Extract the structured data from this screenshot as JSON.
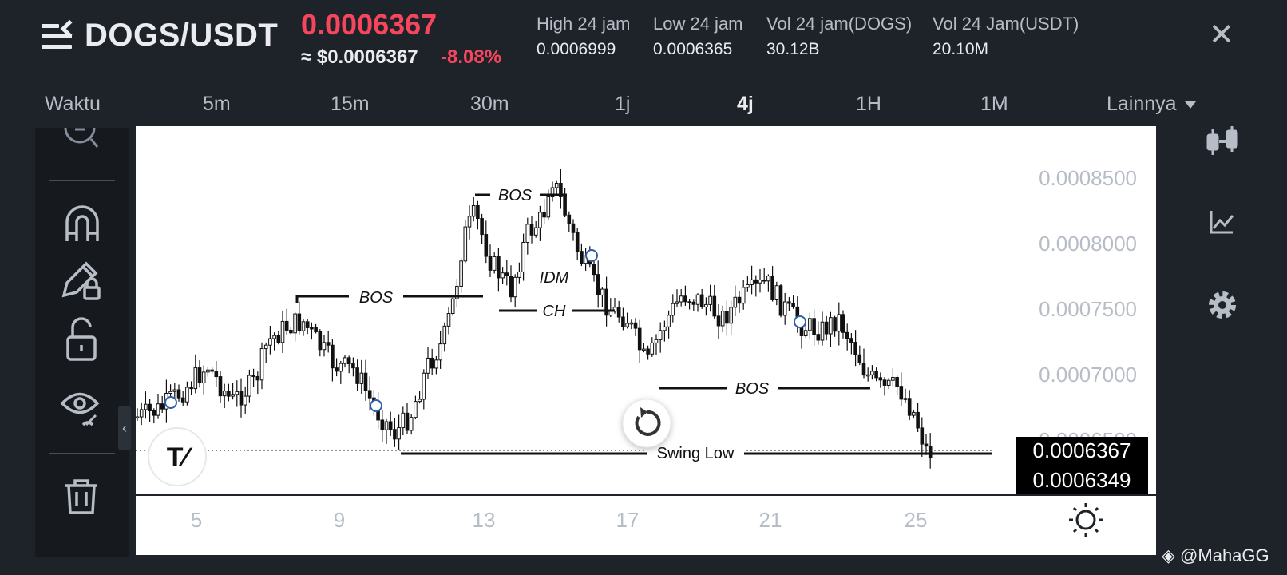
{
  "header": {
    "pair": "DOGS/USDT",
    "price": "0.0006367",
    "usd_price": "≈ $0.0006367",
    "change": "-8.08%",
    "stats": [
      {
        "label": "High 24 jam",
        "value": "0.0006999"
      },
      {
        "label": "Low 24 jam",
        "value": "0.0006365"
      },
      {
        "label": "Vol 24 jam(DOGS)",
        "value": "30.12B"
      },
      {
        "label": "Vol 24 Jam(USDT)",
        "value": "20.10M"
      }
    ],
    "close_glyph": "✕"
  },
  "intervals": {
    "items": [
      "Waktu",
      "5m",
      "15m",
      "30m",
      "1j",
      "4j",
      "1H",
      "1M",
      "Lainnya"
    ],
    "active": "4j"
  },
  "chart": {
    "y_ticks": [
      "0.0008500",
      "0.0008000",
      "0.0007500",
      "0.0007000",
      "0.0006500"
    ],
    "x_ticks": [
      "5",
      "9",
      "13",
      "17",
      "21",
      "25"
    ],
    "price_tag": "0.0006367",
    "price_tag2": "0.0006349",
    "labels": {
      "bos": "BOS",
      "idm": "IDM",
      "ch": "CH",
      "swing_low": "Swing Low"
    },
    "logo_text": "T∕"
  },
  "chart_data": {
    "type": "candlestick",
    "x_labels": [
      "5",
      "9",
      "13",
      "17",
      "21",
      "25"
    ],
    "y_ticks": [
      0.00085,
      0.0008,
      0.00075,
      0.0007,
      0.00065
    ],
    "last_price": 0.0006367,
    "annotations": [
      "BOS",
      "BOS",
      "IDM",
      "CH",
      "BOS",
      "Swing Low"
    ]
  },
  "watermark": "@MahaGG",
  "colors": {
    "bg": "#1e2329",
    "down": "#f6465d",
    "chart_bg": "#ffffff",
    "text_dim": "#b7bdc6"
  }
}
